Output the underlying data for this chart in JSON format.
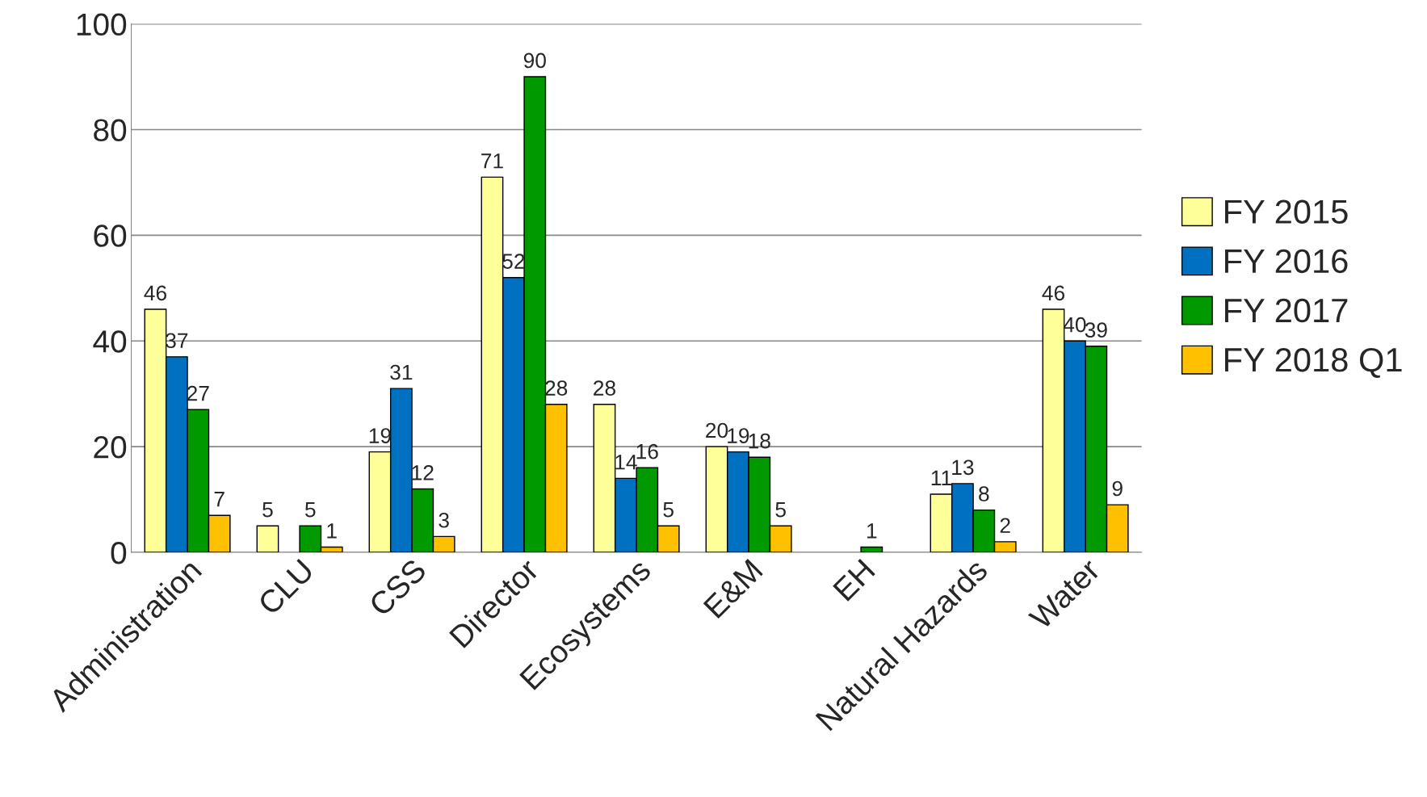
{
  "chart_data": {
    "type": "bar",
    "categories": [
      "Administration",
      "CLU",
      "CSS",
      "Director",
      "Ecosystems",
      "E&M",
      "EH",
      "Natural Hazards",
      "Water"
    ],
    "series": [
      {
        "name": "FY 2015",
        "color": "#ffff99",
        "values": [
          46,
          5,
          19,
          71,
          28,
          20,
          null,
          11,
          46
        ]
      },
      {
        "name": "FY 2016",
        "color": "#0070c0",
        "values": [
          37,
          null,
          31,
          52,
          14,
          19,
          null,
          13,
          40
        ]
      },
      {
        "name": "FY 2017",
        "color": "#009900",
        "values": [
          27,
          5,
          12,
          90,
          16,
          18,
          1,
          8,
          39
        ]
      },
      {
        "name": "FY 2018 Q1",
        "color": "#ffc000",
        "values": [
          7,
          1,
          3,
          28,
          5,
          5,
          null,
          2,
          9
        ]
      }
    ],
    "ylim": [
      0,
      100
    ],
    "yticks": [
      0,
      20,
      40,
      60,
      80,
      100
    ],
    "grid": "y",
    "legend": "right",
    "data_labels": true
  }
}
